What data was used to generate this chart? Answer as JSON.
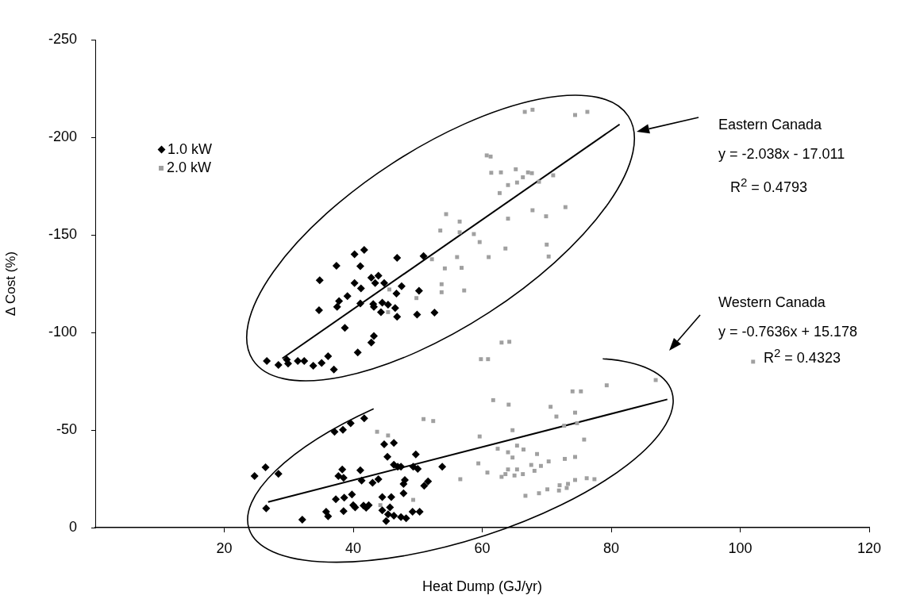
{
  "chart_data": {
    "type": "scatter",
    "xlabel": "Heat Dump (GJ/yr)",
    "ylabel": "Δ Cost (%)",
    "xlim": [
      0,
      120
    ],
    "xticks": [
      20,
      40,
      60,
      80,
      100,
      120
    ],
    "ylim": [
      0,
      -250
    ],
    "yticks": [
      0,
      -50,
      -100,
      -150,
      -200,
      -250
    ],
    "legend": "top left",
    "annotations": [
      "Eastern Canada",
      "y = -2.038x - 17.011",
      "R$^{2}$ = 0.4793",
      "Western Canada",
      "y = -0.7636x + 15.178",
      "R$^{2}$ = 0.4323"
    ],
    "series": [
      {
        "name": "1.0 kW",
        "type": "scatter",
        "marker": "diamond",
        "color": "#000000",
        "x": [
          26.6,
          28.4,
          29.7,
          29.9,
          31.4,
          32.4,
          33.8,
          35.1,
          36.1,
          37.0,
          38.7,
          40.7,
          42.8,
          43.2,
          34.7,
          34.8,
          37.4,
          40.2,
          41.7,
          41.1,
          40.2,
          41.2,
          39.1,
          37.8,
          37.5,
          41.1,
          42.8,
          43.4,
          43.9,
          44.8,
          43.1,
          43.2,
          44.5,
          44.3,
          45.4,
          46.5,
          46.8,
          46.7,
          47.5,
          46.8,
          50.2,
          49.9,
          52.6,
          50.9,
          37.1,
          38.4,
          39.6,
          41.7,
          24.7,
          26.4,
          28.4,
          38.3,
          37.7,
          38.5,
          41.1,
          41.3,
          43.0,
          43.9,
          37.3,
          38.6,
          39.8,
          38.5,
          40.0,
          40.3,
          41.6,
          42.0,
          42.4,
          26.5,
          32.1,
          35.8,
          36.1,
          44.8,
          46.3,
          45.3,
          46.3,
          46.9,
          47.4,
          49.7,
          49.3,
          50.0,
          53.8,
          48.0,
          47.8,
          51.6,
          51.0,
          47.8,
          44.5,
          45.9,
          44.5,
          45.7,
          45.4,
          45.1,
          46.3,
          47.4,
          48.2,
          49.2,
          50.3
        ],
        "values": [
          -85.4,
          -83.3,
          -86.1,
          -84.0,
          -85.4,
          -85.4,
          -82.9,
          -84.4,
          -87.8,
          -81.0,
          -102.3,
          -89.7,
          -94.8,
          -98.2,
          -111.4,
          -126.7,
          -134.1,
          -140.0,
          -142.3,
          -133.9,
          -125.3,
          -122.6,
          -118.6,
          -116.1,
          -113.1,
          -114.8,
          -128.0,
          -125.3,
          -129.1,
          -125.3,
          -114.5,
          -113.1,
          -115.2,
          -110.4,
          -114.2,
          -112.5,
          -108.0,
          -119.9,
          -123.7,
          -138.2,
          -121.3,
          -109.1,
          -110.2,
          -139.1,
          -49.1,
          -50.1,
          -53.5,
          -56.0,
          -26.4,
          -30.9,
          -27.5,
          -29.8,
          -26.4,
          -25.5,
          -29.4,
          -24.1,
          -23.0,
          -24.8,
          -14.5,
          -15.3,
          -17.0,
          -8.4,
          -11.5,
          -10.4,
          -11.3,
          -10.2,
          -11.5,
          -9.9,
          -4.1,
          -8.1,
          -5.8,
          -42.7,
          -43.4,
          -36.3,
          -32.2,
          -31.2,
          -31.2,
          -37.5,
          -31.2,
          -30.1,
          -31.2,
          -24.4,
          -22.4,
          -23.7,
          -21.4,
          -17.6,
          -15.6,
          -15.6,
          -8.8,
          -10.4,
          -6.8,
          -3.4,
          -6.1,
          -5.4,
          -4.8,
          -8.1,
          -8.1
        ]
      },
      {
        "name": "2.0 kW",
        "type": "scatter",
        "marker": "square",
        "color": "#a0a0a0",
        "x": [
          54.4,
          53.5,
          52.2,
          54.2,
          53.7,
          53.7,
          45.6,
          49.8,
          45.4,
          66.6,
          67.8,
          74.4,
          76.3,
          60.7,
          61.3,
          61.4,
          62.9,
          65.2,
          66.3,
          67.1,
          67.7,
          65.4,
          64.0,
          62.7,
          68.8,
          71.0,
          67.8,
          69.9,
          72.9,
          64.0,
          56.5,
          56.5,
          58.7,
          59.6,
          63.6,
          70.0,
          70.3,
          61.0,
          56.1,
          56.8,
          57.2,
          63.0,
          64.2,
          59.8,
          60.9,
          50.9,
          52.4,
          61.7,
          64.1,
          70.6,
          43.7,
          45.4,
          59.6,
          64.7,
          62.4,
          65.4,
          66.4,
          64.0,
          64.7,
          68.5,
          59.4,
          60.8,
          64.0,
          65.4,
          63.0,
          63.6,
          65.0,
          66.3,
          67.6,
          68.1,
          69.1,
          70.3,
          56.6,
          49.3,
          44.2,
          66.7,
          68.8,
          70.1,
          86.9,
          79.3,
          74.0,
          75.3,
          74.4,
          71.5,
          72.7,
          74.7,
          75.8,
          72.8,
          74.4,
          72.0,
          73.3,
          74.4,
          71.9,
          73.1,
          76.2,
          77.4,
          102
        ],
        "values": [
          -160.6,
          -152.2,
          -137.5,
          -132.8,
          -124.7,
          -120.6,
          -122.0,
          -117.6,
          -110.4,
          -213.0,
          -214.1,
          -211.4,
          -213.0,
          -190.7,
          -190.1,
          -181.8,
          -182.0,
          -183.6,
          -179.5,
          -182.0,
          -181.6,
          -176.8,
          -175.5,
          -171.4,
          -177.2,
          -180.5,
          -162.6,
          -159.5,
          -164.2,
          -158.3,
          -156.8,
          -151.3,
          -150.4,
          -146.3,
          -143.0,
          -145.0,
          -138.9,
          -138.6,
          -138.6,
          -133.1,
          -121.5,
          -94.8,
          -95.2,
          -86.3,
          -86.3,
          -55.6,
          -54.6,
          -65.3,
          -63.0,
          -61.9,
          -49.1,
          -47.2,
          -46.7,
          -49.9,
          -40.4,
          -42.0,
          -40.0,
          -38.6,
          -35.9,
          -37.7,
          -32.9,
          -28.2,
          -29.8,
          -29.8,
          -26.0,
          -27.4,
          -26.7,
          -27.4,
          -32.1,
          -29.1,
          -31.6,
          -33.9,
          -24.8,
          -14.2,
          -11.5,
          -16.3,
          -17.6,
          -19.6,
          -75.6,
          -72.9,
          -69.8,
          -69.8,
          -58.9,
          -56.9,
          -52.2,
          -53.5,
          -45.1,
          -35.2,
          -36.2,
          -21.7,
          -22.4,
          -24.4,
          -19.0,
          -20.3,
          -25.3,
          -24.8,
          -85
        ]
      },
      {
        "type": "line",
        "color": "#000000",
        "x": [
          29.0,
          81.3
        ],
        "values": [
          -86.7,
          -206.6
        ]
      },
      {
        "type": "line",
        "color": "#000000",
        "x": [
          26.8,
          88.7
        ],
        "values": [
          -13.1,
          -65.7
        ]
      }
    ]
  }
}
